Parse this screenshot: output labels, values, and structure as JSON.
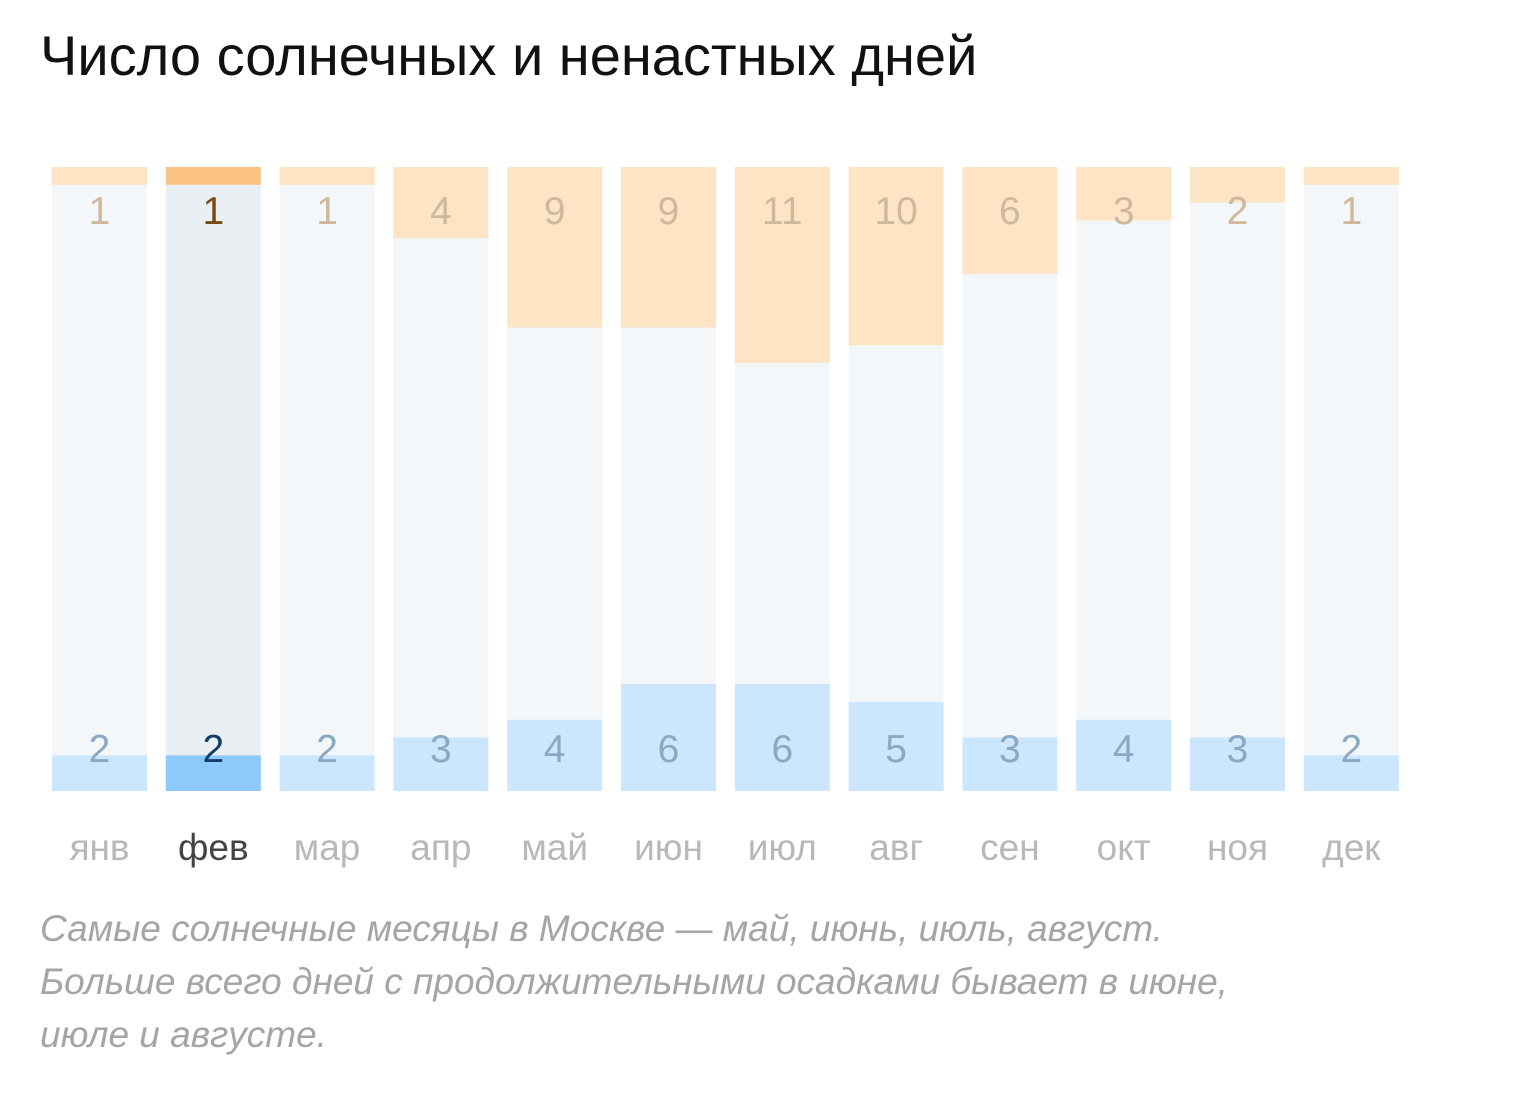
{
  "title": "Число солнечных и ненастных дней",
  "chart_data": {
    "type": "bar",
    "stacked": true,
    "categories": [
      "янв",
      "фев",
      "мар",
      "апр",
      "май",
      "июн",
      "июл",
      "авг",
      "сен",
      "окт",
      "ноя",
      "дек"
    ],
    "selected_category": "фев",
    "series": [
      {
        "key": "sunny",
        "values": [
          1,
          1,
          1,
          4,
          9,
          9,
          11,
          10,
          6,
          3,
          2,
          1
        ],
        "position": "top"
      },
      {
        "key": "rainy",
        "values": [
          2,
          2,
          2,
          3,
          4,
          6,
          6,
          5,
          3,
          4,
          3,
          2
        ],
        "position": "bottom"
      }
    ],
    "ylim": [
      0,
      35
    ],
    "grid": false,
    "legend": "none"
  },
  "caption": {
    "lines": [
      "Самые солнечные месяцы в Москве — май, июнь, июль, август.",
      "Больше всего дней с продолжительными осадками бывает в июне,",
      "июле и августе."
    ]
  },
  "colors": {
    "bar_background": "#f3f7f9",
    "bar_background_selected": "#e9eff3",
    "sunny": "#fde4c4",
    "sunny_selected": "#fbc485",
    "rainy": "#cce6fd",
    "rainy_selected": "#8ec9fb",
    "sunny_label": "#cfb89b",
    "sunny_label_selected": "#7a4a14",
    "rainy_label": "#8aa9c4",
    "rainy_label_selected": "#123e6a",
    "month_label": "#b8b8b8",
    "month_label_selected": "#444444"
  }
}
